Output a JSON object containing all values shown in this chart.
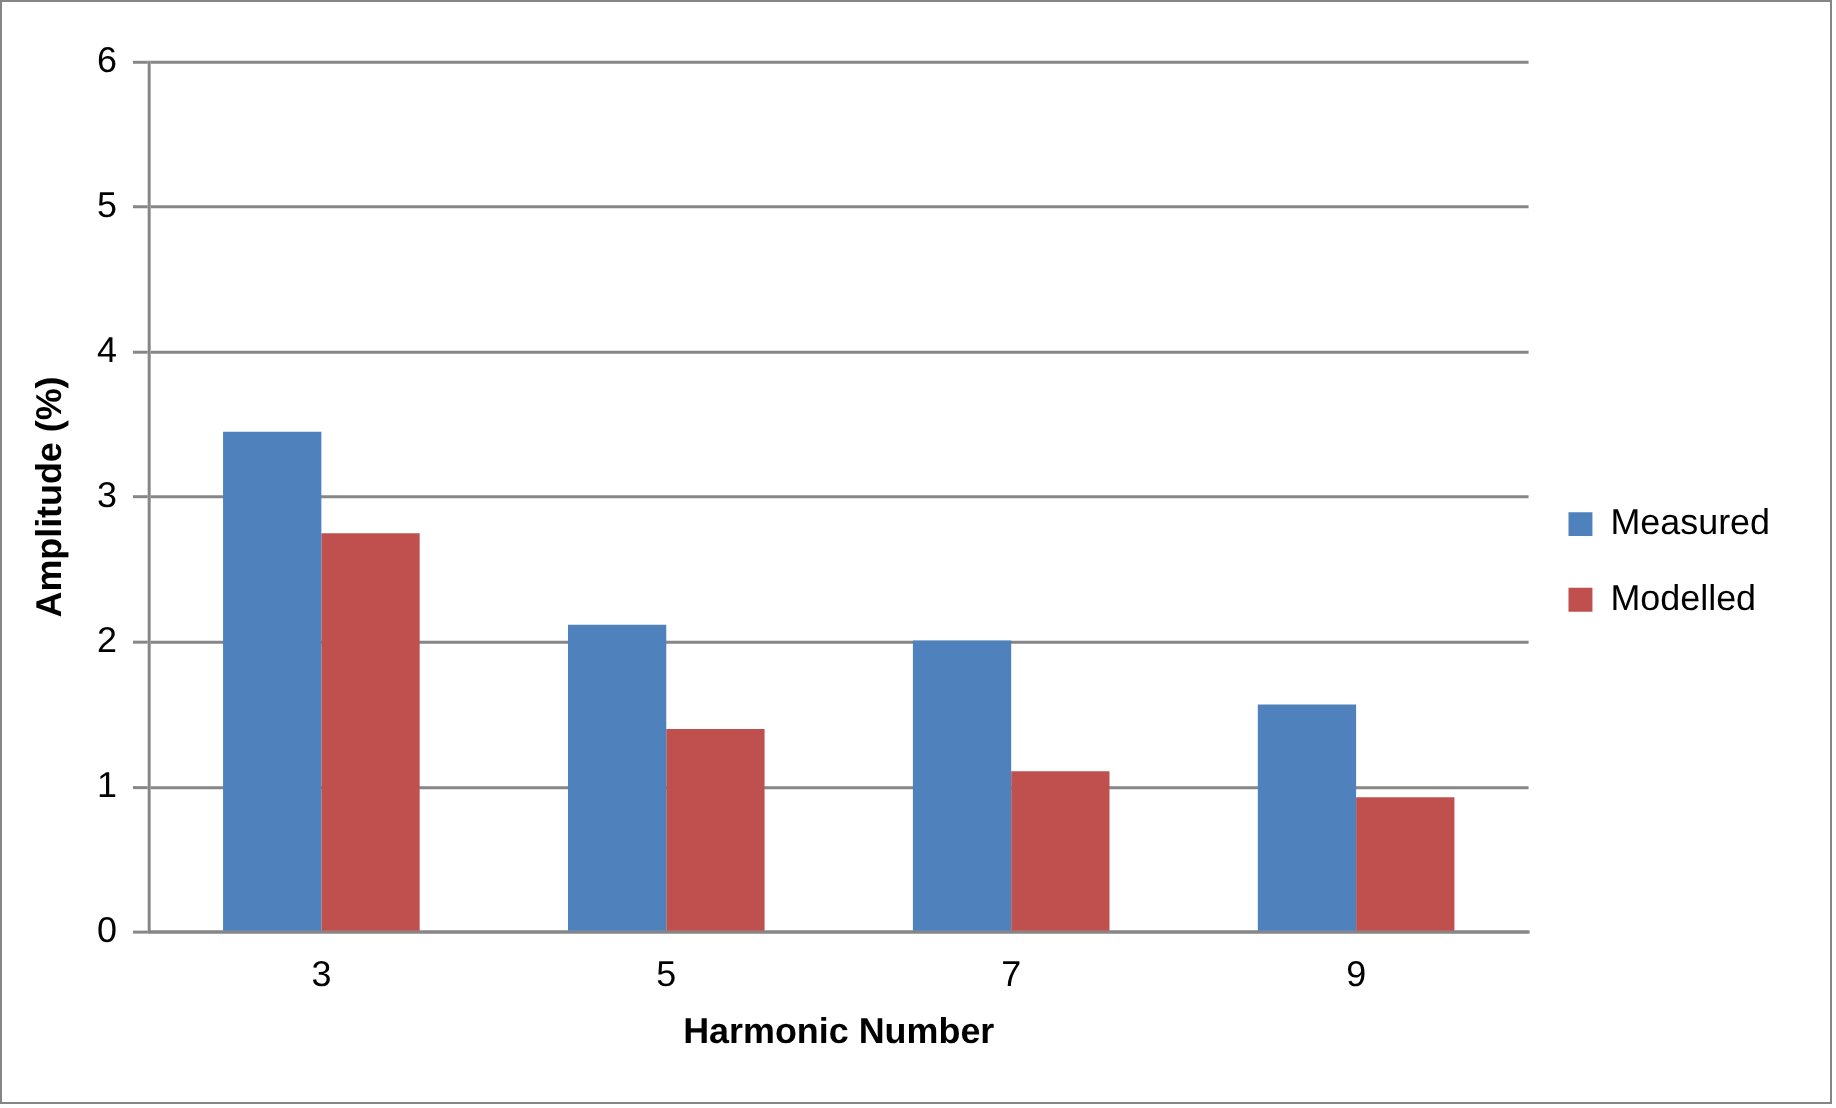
{
  "chart_data": {
    "type": "bar",
    "xlabel": "Harmonic Number",
    "ylabel": "Amplitude (%)",
    "categories": [
      "3",
      "5",
      "7",
      "9"
    ],
    "series": [
      {
        "name": "Measured",
        "color": "#4f81bd",
        "values": [
          3.45,
          2.12,
          2.01,
          1.57
        ]
      },
      {
        "name": "Modelled",
        "color": "#c0504d",
        "values": [
          2.75,
          1.4,
          1.11,
          0.93
        ]
      }
    ],
    "ylim": [
      0,
      6
    ],
    "yticks": [
      0,
      1,
      2,
      3,
      4,
      5,
      6
    ],
    "grid": "y",
    "legend": "right"
  }
}
